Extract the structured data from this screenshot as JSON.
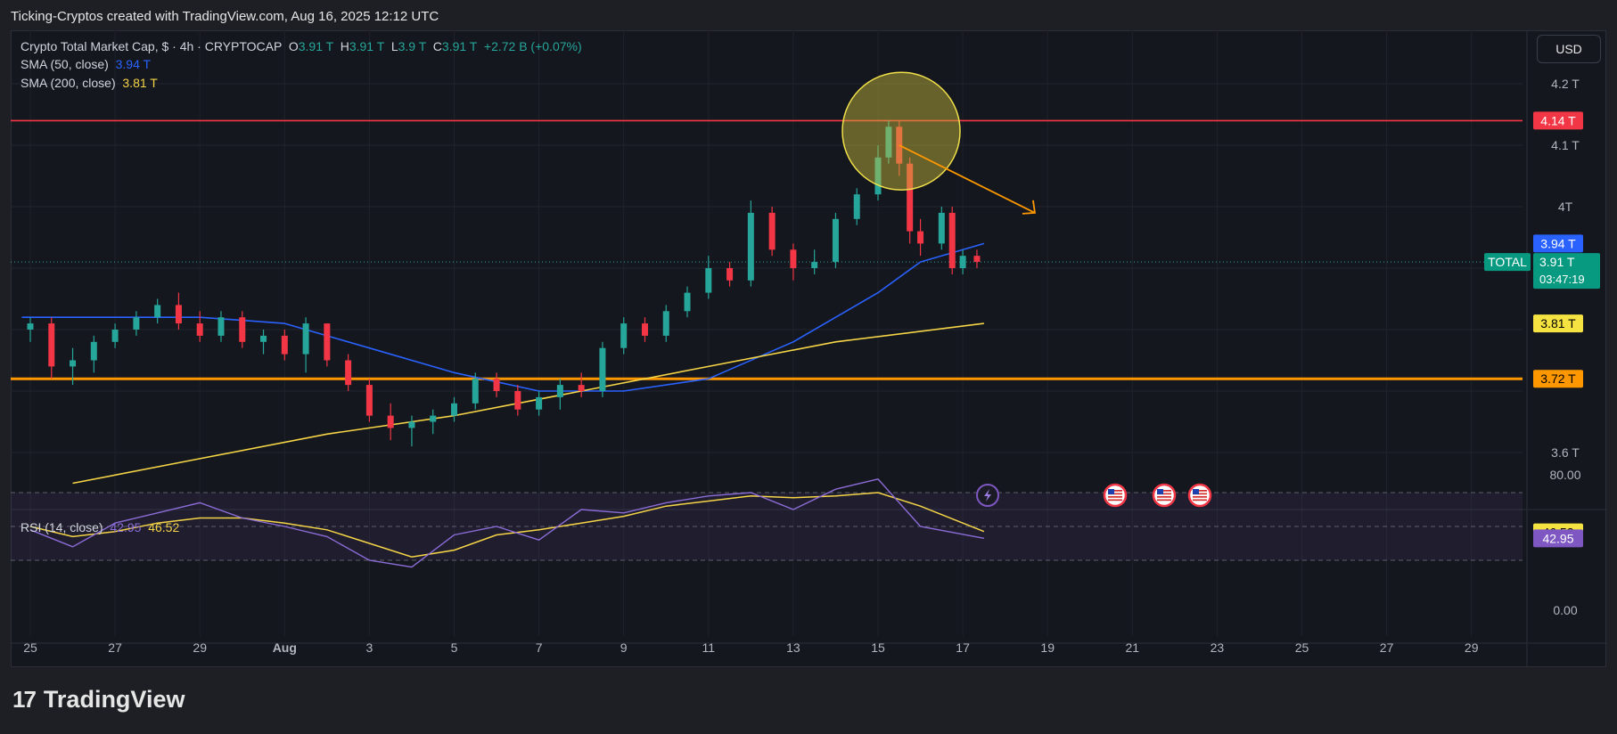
{
  "header": {
    "attribution": "Ticking-Cryptos created with TradingView.com, Aug 16, 2025 12:12 UTC"
  },
  "legend": {
    "symbol_line": "Crypto Total Market Cap, $ · 4h · CRYPTOCAP",
    "o_label": "O",
    "o_value": "3.91 T",
    "h_label": "H",
    "h_value": "3.91 T",
    "l_label": "L",
    "l_value": "3.9 T",
    "c_label": "C",
    "c_value": "3.91 T",
    "change": "+2.72 B (+0.07%)",
    "sma50_label": "SMA (50, close)",
    "sma50_value": "3.94 T",
    "sma200_label": "SMA (200, close)",
    "sma200_value": "3.81 T",
    "rsi_label": "RSI (14, close)",
    "rsi_value": "42.95",
    "rsi_ma_value": "46.52"
  },
  "currency_button": "USD",
  "brand": {
    "logo": "17",
    "name": "TradingView"
  },
  "price_axis": {
    "ticks": [
      "4.2 T",
      "4.1 T",
      "4T",
      "3.6 T"
    ],
    "tick_values": [
      4.2,
      4.1,
      4.0,
      3.6
    ],
    "tags": [
      {
        "text": "4.14 T",
        "value": 4.14,
        "bg": "#f23645",
        "fg": "#ffffff"
      },
      {
        "text": "3.94 T",
        "value": 3.94,
        "bg": "#2962ff",
        "fg": "#ffffff"
      },
      {
        "text": "3.81 T",
        "value": 3.81,
        "bg": "#f5e342",
        "fg": "#000000"
      },
      {
        "text": "3.72 T",
        "value": 3.72,
        "bg": "#ff9800",
        "fg": "#000000"
      }
    ],
    "current": {
      "symbol": "TOTAL",
      "price": "3.91 T",
      "countdown": "03:47:19",
      "value": 3.91,
      "bg": "#089981"
    }
  },
  "rsi_axis": {
    "ticks": [
      "80.00",
      "0.00"
    ],
    "tick_values": [
      80,
      0
    ],
    "tags": [
      {
        "text": "46.52",
        "value": 46.52,
        "bg": "#f5e342",
        "fg": "#000000"
      },
      {
        "text": "42.95",
        "value": 42.95,
        "bg": "#7e57c2",
        "fg": "#ffffff"
      }
    ]
  },
  "time_axis": {
    "labels": [
      "25",
      "27",
      "29",
      "Aug",
      "3",
      "5",
      "7",
      "9",
      "11",
      "13",
      "15",
      "17",
      "19",
      "21",
      "23",
      "25",
      "27",
      "29"
    ]
  },
  "colors": {
    "up": "#26a69a",
    "down": "#f23645",
    "sma50": "#2962ff",
    "sma200": "#f5d547",
    "resistance": "#f23645",
    "support": "#ff9800",
    "rsi": "#8b6cd6",
    "rsi_ma": "#f5d547"
  },
  "event_icons": [
    "flash-icon",
    "us-flag-icon",
    "us-flag-icon",
    "us-flag-icon"
  ],
  "chart_data": {
    "type": "candlestick",
    "title": "Crypto Total Market Cap, $ · 4h · CRYPTOCAP",
    "x_range": [
      "Jul 25",
      "Aug 29"
    ],
    "y_unit": "T",
    "ylim": [
      3.55,
      4.25
    ],
    "grid": true,
    "levels": [
      {
        "value": 4.14,
        "style": "resistance"
      },
      {
        "value": 3.72,
        "style": "support"
      }
    ],
    "annotations": [
      {
        "type": "circle",
        "at": "Aug 14",
        "value": 4.12
      },
      {
        "type": "arrow",
        "from": [
          "Aug 14.5",
          4.1
        ],
        "to": [
          "Aug 17.7",
          3.99
        ]
      }
    ],
    "candles": [
      {
        "t": "Jul 25 00:00",
        "o": 3.8,
        "h": 3.82,
        "l": 3.78,
        "c": 3.81
      },
      {
        "t": "Jul 25 12:00",
        "o": 3.81,
        "h": 3.82,
        "l": 3.72,
        "c": 3.74
      },
      {
        "t": "Jul 26 00:00",
        "o": 3.74,
        "h": 3.77,
        "l": 3.71,
        "c": 3.75
      },
      {
        "t": "Jul 26 12:00",
        "o": 3.75,
        "h": 3.79,
        "l": 3.73,
        "c": 3.78
      },
      {
        "t": "Jul 27 00:00",
        "o": 3.78,
        "h": 3.81,
        "l": 3.77,
        "c": 3.8
      },
      {
        "t": "Jul 27 12:00",
        "o": 3.8,
        "h": 3.83,
        "l": 3.79,
        "c": 3.82
      },
      {
        "t": "Jul 28 00:00",
        "o": 3.82,
        "h": 3.85,
        "l": 3.81,
        "c": 3.84
      },
      {
        "t": "Jul 28 12:00",
        "o": 3.84,
        "h": 3.86,
        "l": 3.8,
        "c": 3.81
      },
      {
        "t": "Jul 29 00:00",
        "o": 3.81,
        "h": 3.83,
        "l": 3.78,
        "c": 3.79
      },
      {
        "t": "Jul 29 12:00",
        "o": 3.79,
        "h": 3.83,
        "l": 3.78,
        "c": 3.82
      },
      {
        "t": "Jul 30 00:00",
        "o": 3.82,
        "h": 3.83,
        "l": 3.77,
        "c": 3.78
      },
      {
        "t": "Jul 30 12:00",
        "o": 3.78,
        "h": 3.8,
        "l": 3.76,
        "c": 3.79
      },
      {
        "t": "Jul 31 00:00",
        "o": 3.79,
        "h": 3.8,
        "l": 3.75,
        "c": 3.76
      },
      {
        "t": "Jul 31 12:00",
        "o": 3.76,
        "h": 3.82,
        "l": 3.73,
        "c": 3.81
      },
      {
        "t": "Aug 1 00:00",
        "o": 3.81,
        "h": 3.81,
        "l": 3.74,
        "c": 3.75
      },
      {
        "t": "Aug 1 12:00",
        "o": 3.75,
        "h": 3.76,
        "l": 3.7,
        "c": 3.71
      },
      {
        "t": "Aug 2 00:00",
        "o": 3.71,
        "h": 3.72,
        "l": 3.65,
        "c": 3.66
      },
      {
        "t": "Aug 2 12:00",
        "o": 3.66,
        "h": 3.68,
        "l": 3.62,
        "c": 3.64
      },
      {
        "t": "Aug 3 00:00",
        "o": 3.64,
        "h": 3.66,
        "l": 3.61,
        "c": 3.65
      },
      {
        "t": "Aug 3 12:00",
        "o": 3.65,
        "h": 3.67,
        "l": 3.63,
        "c": 3.66
      },
      {
        "t": "Aug 4 00:00",
        "o": 3.66,
        "h": 3.69,
        "l": 3.65,
        "c": 3.68
      },
      {
        "t": "Aug 4 12:00",
        "o": 3.68,
        "h": 3.73,
        "l": 3.67,
        "c": 3.72
      },
      {
        "t": "Aug 5 00:00",
        "o": 3.72,
        "h": 3.73,
        "l": 3.69,
        "c": 3.7
      },
      {
        "t": "Aug 5 12:00",
        "o": 3.7,
        "h": 3.71,
        "l": 3.66,
        "c": 3.67
      },
      {
        "t": "Aug 6 00:00",
        "o": 3.67,
        "h": 3.7,
        "l": 3.66,
        "c": 3.69
      },
      {
        "t": "Aug 6 12:00",
        "o": 3.69,
        "h": 3.72,
        "l": 3.67,
        "c": 3.71
      },
      {
        "t": "Aug 7 00:00",
        "o": 3.71,
        "h": 3.73,
        "l": 3.69,
        "c": 3.7
      },
      {
        "t": "Aug 7 12:00",
        "o": 3.7,
        "h": 3.78,
        "l": 3.69,
        "c": 3.77
      },
      {
        "t": "Aug 8 00:00",
        "o": 3.77,
        "h": 3.82,
        "l": 3.76,
        "c": 3.81
      },
      {
        "t": "Aug 8 12:00",
        "o": 3.81,
        "h": 3.82,
        "l": 3.78,
        "c": 3.79
      },
      {
        "t": "Aug 9 00:00",
        "o": 3.79,
        "h": 3.84,
        "l": 3.78,
        "c": 3.83
      },
      {
        "t": "Aug 9 12:00",
        "o": 3.83,
        "h": 3.87,
        "l": 3.82,
        "c": 3.86
      },
      {
        "t": "Aug 10 00:00",
        "o": 3.86,
        "h": 3.92,
        "l": 3.85,
        "c": 3.9
      },
      {
        "t": "Aug 10 12:00",
        "o": 3.9,
        "h": 3.91,
        "l": 3.87,
        "c": 3.88
      },
      {
        "t": "Aug 11 00:00",
        "o": 3.88,
        "h": 4.01,
        "l": 3.87,
        "c": 3.99
      },
      {
        "t": "Aug 11 12:00",
        "o": 3.99,
        "h": 4.0,
        "l": 3.92,
        "c": 3.93
      },
      {
        "t": "Aug 12 00:00",
        "o": 3.93,
        "h": 3.94,
        "l": 3.88,
        "c": 3.9
      },
      {
        "t": "Aug 12 12:00",
        "o": 3.9,
        "h": 3.93,
        "l": 3.89,
        "c": 3.91
      },
      {
        "t": "Aug 13 00:00",
        "o": 3.91,
        "h": 3.99,
        "l": 3.9,
        "c": 3.98
      },
      {
        "t": "Aug 13 12:00",
        "o": 3.98,
        "h": 4.03,
        "l": 3.97,
        "c": 4.02
      },
      {
        "t": "Aug 14 00:00",
        "o": 4.02,
        "h": 4.1,
        "l": 4.01,
        "c": 4.08
      },
      {
        "t": "Aug 14 06:00",
        "o": 4.08,
        "h": 4.14,
        "l": 4.07,
        "c": 4.13
      },
      {
        "t": "Aug 14 12:00",
        "o": 4.13,
        "h": 4.14,
        "l": 4.05,
        "c": 4.07
      },
      {
        "t": "Aug 14 18:00",
        "o": 4.07,
        "h": 4.08,
        "l": 3.94,
        "c": 3.96
      },
      {
        "t": "Aug 15 00:00",
        "o": 3.96,
        "h": 3.98,
        "l": 3.92,
        "c": 3.94
      },
      {
        "t": "Aug 15 12:00",
        "o": 3.94,
        "h": 4.0,
        "l": 3.93,
        "c": 3.99
      },
      {
        "t": "Aug 15 18:00",
        "o": 3.99,
        "h": 4.0,
        "l": 3.89,
        "c": 3.9
      },
      {
        "t": "Aug 16 00:00",
        "o": 3.9,
        "h": 3.93,
        "l": 3.89,
        "c": 3.92
      },
      {
        "t": "Aug 16 08:00",
        "o": 3.92,
        "h": 3.93,
        "l": 3.9,
        "c": 3.91
      }
    ],
    "series": [
      {
        "name": "SMA (50, close)",
        "x": [
          "Jul 24.8",
          "Jul 27",
          "Jul 29",
          "Jul 31",
          "Aug 2",
          "Aug 4",
          "Aug 6",
          "Aug 8",
          "Aug 10",
          "Aug 12",
          "Aug 14",
          "Aug 15",
          "Aug 16.5"
        ],
        "values": [
          3.82,
          3.82,
          3.82,
          3.81,
          3.77,
          3.73,
          3.7,
          3.7,
          3.72,
          3.78,
          3.86,
          3.91,
          3.94
        ]
      },
      {
        "name": "SMA (200, close)",
        "x": [
          "Jul 26",
          "Jul 29",
          "Aug 1",
          "Aug 4",
          "Aug 7",
          "Aug 10",
          "Aug 13",
          "Aug 16.5"
        ],
        "values": [
          3.55,
          3.59,
          3.63,
          3.66,
          3.7,
          3.74,
          3.78,
          3.81
        ]
      }
    ],
    "rsi": {
      "ylim": [
        0,
        100
      ],
      "bands": [
        70,
        50,
        30
      ],
      "x": [
        "Jul 25",
        "Jul 26",
        "Jul 27",
        "Jul 28",
        "Jul 29",
        "Jul 30",
        "Jul 31",
        "Aug 1",
        "Aug 2",
        "Aug 3",
        "Aug 4",
        "Aug 5",
        "Aug 6",
        "Aug 7",
        "Aug 8",
        "Aug 9",
        "Aug 10",
        "Aug 11",
        "Aug 12",
        "Aug 13",
        "Aug 14",
        "Aug 15",
        "Aug 16.5"
      ],
      "values": [
        48,
        38,
        52,
        58,
        64,
        55,
        50,
        44,
        30,
        26,
        45,
        50,
        42,
        60,
        58,
        64,
        68,
        70,
        60,
        72,
        78,
        50,
        43
      ],
      "ma_values": [
        50,
        44,
        47,
        52,
        55,
        55,
        52,
        48,
        40,
        32,
        36,
        45,
        48,
        52,
        56,
        62,
        65,
        68,
        67,
        68,
        70,
        62,
        47
      ]
    }
  }
}
